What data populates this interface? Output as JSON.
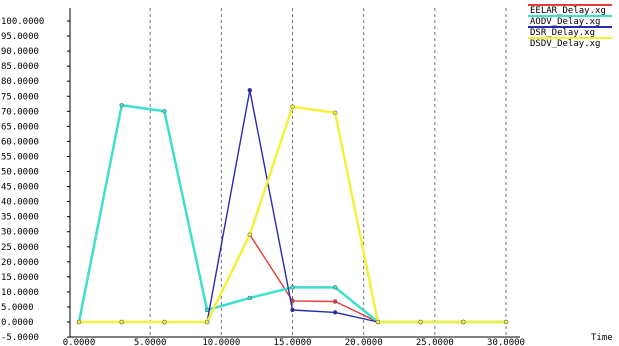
{
  "chart_data": {
    "type": "line",
    "xlabel": "Time",
    "ylabel": "",
    "xlim": [
      0,
      30
    ],
    "ylim": [
      -5,
      105
    ],
    "x_ticks": [
      "0.0000",
      "5.0000",
      "10.0000",
      "15.0000",
      "20.0000",
      "25.0000",
      "30.0000"
    ],
    "x_tick_values": [
      0,
      5,
      10,
      15,
      20,
      25,
      30
    ],
    "y_ticks": [
      "-5.0000",
      "0.0000",
      "5.0000",
      "10.0000",
      "15.0000",
      "20.0000",
      "25.0000",
      "30.0000",
      "35.0000",
      "40.0000",
      "45.0000",
      "50.0000",
      "55.0000",
      "60.0000",
      "65.0000",
      "70.0000",
      "75.0000",
      "80.0000",
      "85.0000",
      "90.0000",
      "95.0000",
      "100.0000"
    ],
    "y_tick_values": [
      -5,
      0,
      5,
      10,
      15,
      20,
      25,
      30,
      35,
      40,
      45,
      50,
      55,
      60,
      65,
      70,
      75,
      80,
      85,
      90,
      95,
      100
    ],
    "grid": true,
    "legend_position": "top-right",
    "series": [
      {
        "name": "EELAR_Delay.xg",
        "color": "#e83a3a",
        "x": [
          0,
          3,
          6,
          9,
          12,
          15,
          18,
          21,
          24,
          27,
          30
        ],
        "values": [
          0,
          0,
          0,
          0,
          29,
          7,
          6.8,
          0,
          0,
          0,
          0
        ]
      },
      {
        "name": "AODV_Delay.xg",
        "color": "#3de0cc",
        "x": [
          0,
          3,
          6,
          9,
          12,
          15,
          18,
          21,
          24,
          27,
          30
        ],
        "values": [
          0,
          72,
          70,
          4,
          8,
          11.5,
          11.5,
          0,
          0,
          0,
          0
        ]
      },
      {
        "name": "DSR_Delay.xg",
        "color": "#2a2ab0",
        "x": [
          0,
          3,
          6,
          9,
          12,
          15,
          18,
          21,
          24,
          27,
          30
        ],
        "values": [
          0,
          0,
          0,
          0,
          77,
          4,
          3.2,
          0,
          0,
          0,
          0
        ]
      },
      {
        "name": "DSDV_Delay.xg",
        "color": "#f5f03a",
        "x": [
          0,
          3,
          6,
          9,
          12,
          15,
          18,
          21,
          24,
          27,
          30
        ],
        "values": [
          0,
          0,
          0,
          0,
          29,
          71.5,
          69.5,
          0,
          0,
          0,
          0
        ]
      }
    ]
  }
}
